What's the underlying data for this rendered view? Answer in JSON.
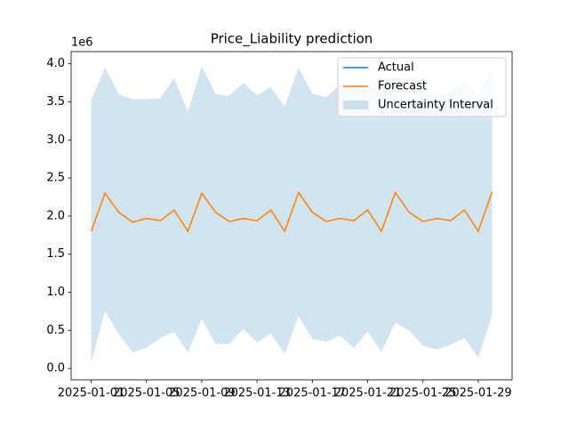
{
  "chart_data": {
    "type": "line",
    "title": "Price_Liability prediction",
    "y_offset_label": "1e6",
    "x": [
      "2025-01-01",
      "2025-01-02",
      "2025-01-03",
      "2025-01-04",
      "2025-01-05",
      "2025-01-06",
      "2025-01-07",
      "2025-01-08",
      "2025-01-09",
      "2025-01-10",
      "2025-01-11",
      "2025-01-12",
      "2025-01-13",
      "2025-01-14",
      "2025-01-15",
      "2025-01-16",
      "2025-01-17",
      "2025-01-18",
      "2025-01-19",
      "2025-01-20",
      "2025-01-21",
      "2025-01-22",
      "2025-01-23",
      "2025-01-24",
      "2025-01-25",
      "2025-01-26",
      "2025-01-27",
      "2025-01-28",
      "2025-01-29",
      "2025-01-30"
    ],
    "series": [
      {
        "name": "Actual",
        "color": "#1f77b4",
        "values": [
          null,
          null,
          null,
          null,
          null,
          null,
          null,
          null,
          null,
          null,
          null,
          null,
          null,
          null,
          null,
          null,
          null,
          null,
          null,
          null,
          null,
          null,
          null,
          null,
          null,
          null,
          null,
          null,
          null,
          null
        ]
      },
      {
        "name": "Forecast",
        "color": "#ff7f0e",
        "values": [
          1.8,
          2.3,
          2.05,
          1.92,
          1.97,
          1.94,
          2.08,
          1.8,
          2.3,
          2.05,
          1.93,
          1.97,
          1.94,
          2.08,
          1.8,
          2.31,
          2.05,
          1.93,
          1.97,
          1.94,
          2.08,
          1.8,
          2.31,
          2.05,
          1.93,
          1.97,
          1.94,
          2.08,
          1.8,
          2.32
        ]
      }
    ],
    "band": {
      "name": "Uncertainty Interval",
      "color": "#1f77b4",
      "opacity": 0.2,
      "upper": [
        3.52,
        3.95,
        3.6,
        3.53,
        3.54,
        3.55,
        3.81,
        3.37,
        3.97,
        3.6,
        3.58,
        3.75,
        3.59,
        3.69,
        3.44,
        3.95,
        3.61,
        3.56,
        3.72,
        3.7,
        3.68,
        3.75,
        3.66,
        3.65,
        3.62,
        3.57,
        3.62,
        3.76,
        3.59,
        3.95
      ],
      "lower": [
        0.08,
        0.75,
        0.45,
        0.21,
        0.27,
        0.4,
        0.48,
        0.21,
        0.65,
        0.32,
        0.32,
        0.52,
        0.34,
        0.46,
        0.19,
        0.69,
        0.39,
        0.35,
        0.43,
        0.27,
        0.48,
        0.22,
        0.6,
        0.5,
        0.3,
        0.25,
        0.31,
        0.4,
        0.14,
        0.7
      ]
    },
    "xlim": [
      "2024-12-30T13:12:00Z",
      "2025-01-31T10:48:00Z"
    ],
    "xticks": [
      "2025-01-01",
      "2025-01-05",
      "2025-01-09",
      "2025-01-13",
      "2025-01-17",
      "2025-01-21",
      "2025-01-25",
      "2025-01-29"
    ],
    "ylim": [
      -0.15,
      4.16
    ],
    "yticks": [
      {
        "value": 0,
        "label": "0.0"
      },
      {
        "value": 0.5,
        "label": "0.5"
      },
      {
        "value": 1,
        "label": "1.0"
      },
      {
        "value": 1.5,
        "label": "1.5"
      },
      {
        "value": 2,
        "label": "2.0"
      },
      {
        "value": 2.5,
        "label": "2.5"
      },
      {
        "value": 3,
        "label": "3.0"
      },
      {
        "value": 3.5,
        "label": "3.5"
      },
      {
        "value": 4,
        "label": "4.0"
      }
    ],
    "legend": "upper right"
  }
}
